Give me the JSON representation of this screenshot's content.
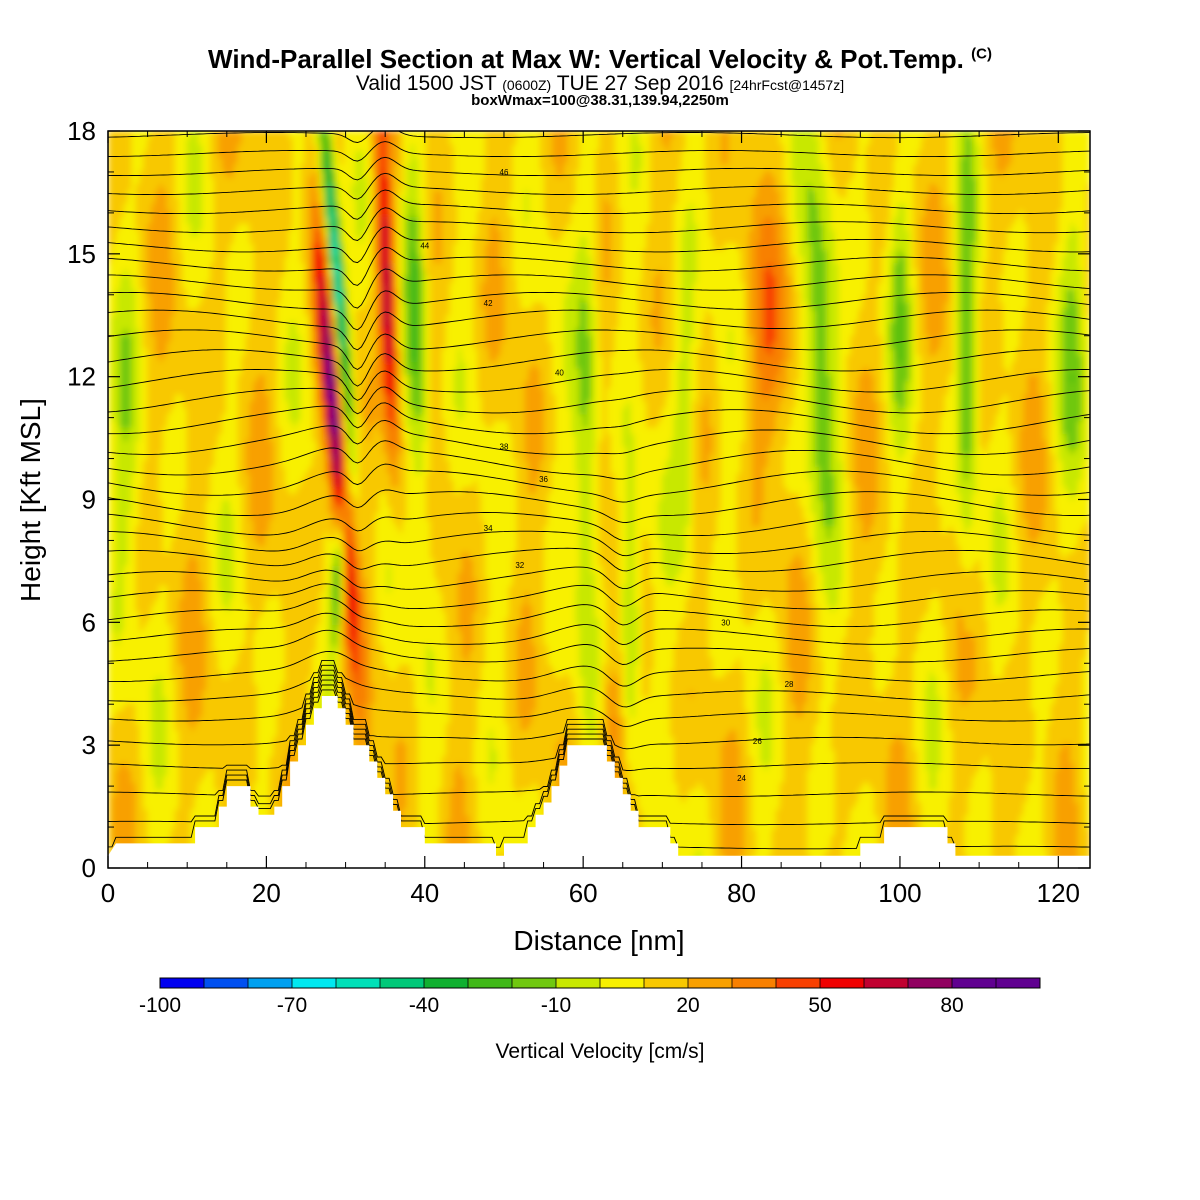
{
  "title": {
    "line1": "Wind-Parallel Section at Max W: Vertical Velocity & Pot.Temp.",
    "line1_mark": "(C)",
    "line2_a": "Valid 1500 JST",
    "line2_b": "(0600Z)",
    "line2_c": "TUE 27 Sep 2016",
    "line2_d": "[24hrFcst@1457z]",
    "line3": "boxWmax=100@38.31,139.94,2250m"
  },
  "chart_data": {
    "type": "heatmap",
    "xlabel": "Distance [nm]",
    "ylabel": "Height [Kft MSL]",
    "xlim": [
      0,
      124
    ],
    "ylim": [
      0,
      18
    ],
    "xticks": [
      0,
      20,
      40,
      60,
      80,
      100,
      120
    ],
    "yticks": [
      0,
      3,
      6,
      9,
      12,
      15,
      18
    ],
    "colorbar": {
      "label": "Vertical Velocity [cm/s]",
      "tick_labels": [
        "-100",
        "-70",
        "-40",
        "-10",
        "20",
        "50",
        "80"
      ],
      "tick_values": [
        -100,
        -70,
        -40,
        -10,
        20,
        50,
        80
      ],
      "levels": [
        -100,
        -90,
        -80,
        -70,
        -60,
        -50,
        -40,
        -30,
        -20,
        -10,
        0,
        10,
        20,
        30,
        40,
        50,
        60,
        70,
        80,
        90,
        100
      ],
      "colors": [
        "#0000f0",
        "#0050f0",
        "#00a0f0",
        "#00e8f0",
        "#00e0b8",
        "#00c878",
        "#10b030",
        "#40b818",
        "#70c810",
        "#c8e800",
        "#f8f000",
        "#f8c800",
        "#f8a000",
        "#f88000",
        "#f84000",
        "#f00000",
        "#c00030",
        "#900060",
        "#600090",
        "#600090"
      ]
    },
    "terrain": [
      [
        0,
        0.3
      ],
      [
        1,
        0.6
      ],
      [
        4,
        0.6
      ],
      [
        11,
        0.6
      ],
      [
        11,
        1.0
      ],
      [
        14,
        1.0
      ],
      [
        14,
        1.5
      ],
      [
        15,
        1.5
      ],
      [
        15,
        2.0
      ],
      [
        18,
        2.0
      ],
      [
        18,
        1.5
      ],
      [
        19,
        1.5
      ],
      [
        19,
        1.3
      ],
      [
        21,
        1.3
      ],
      [
        21,
        1.5
      ],
      [
        22,
        1.5
      ],
      [
        22,
        2.0
      ],
      [
        23,
        2.0
      ],
      [
        23,
        2.6
      ],
      [
        24,
        2.6
      ],
      [
        24,
        3.0
      ],
      [
        25,
        3.0
      ],
      [
        25,
        3.5
      ],
      [
        26,
        3.5
      ],
      [
        26,
        3.9
      ],
      [
        27,
        3.9
      ],
      [
        27,
        4.2
      ],
      [
        29,
        4.2
      ],
      [
        29,
        3.9
      ],
      [
        30,
        3.9
      ],
      [
        30,
        3.5
      ],
      [
        31,
        3.5
      ],
      [
        31,
        3.0
      ],
      [
        33,
        3.0
      ],
      [
        33,
        2.6
      ],
      [
        34,
        2.6
      ],
      [
        34,
        2.2
      ],
      [
        35,
        2.2
      ],
      [
        35,
        1.8
      ],
      [
        36,
        1.8
      ],
      [
        36,
        1.4
      ],
      [
        37,
        1.4
      ],
      [
        37,
        1.0
      ],
      [
        40,
        1.0
      ],
      [
        40,
        0.6
      ],
      [
        49,
        0.6
      ],
      [
        49,
        0.3
      ],
      [
        50,
        0.3
      ],
      [
        50,
        0.6
      ],
      [
        53,
        0.6
      ],
      [
        53,
        1.0
      ],
      [
        54,
        1.0
      ],
      [
        54,
        1.3
      ],
      [
        55,
        1.3
      ],
      [
        55,
        1.6
      ],
      [
        56,
        1.6
      ],
      [
        56,
        2.0
      ],
      [
        57,
        2.0
      ],
      [
        57,
        2.5
      ],
      [
        58,
        2.5
      ],
      [
        58,
        3.0
      ],
      [
        63,
        3.0
      ],
      [
        63,
        2.6
      ],
      [
        64,
        2.6
      ],
      [
        64,
        2.2
      ],
      [
        65,
        2.2
      ],
      [
        65,
        1.8
      ],
      [
        66,
        1.8
      ],
      [
        66,
        1.4
      ],
      [
        67,
        1.4
      ],
      [
        67,
        1.0
      ],
      [
        71,
        1.0
      ],
      [
        71,
        0.6
      ],
      [
        72,
        0.6
      ],
      [
        72,
        0.3
      ],
      [
        95,
        0.3
      ],
      [
        95,
        0.6
      ],
      [
        98,
        0.6
      ],
      [
        98,
        1.0
      ],
      [
        106,
        1.0
      ],
      [
        106,
        0.6
      ],
      [
        107,
        0.6
      ],
      [
        107,
        0.3
      ],
      [
        124,
        0.3
      ]
    ],
    "theta_labels": [
      "24",
      "26",
      "28",
      "30",
      "32",
      "34",
      "36",
      "38",
      "40",
      "42",
      "44",
      "46"
    ]
  }
}
